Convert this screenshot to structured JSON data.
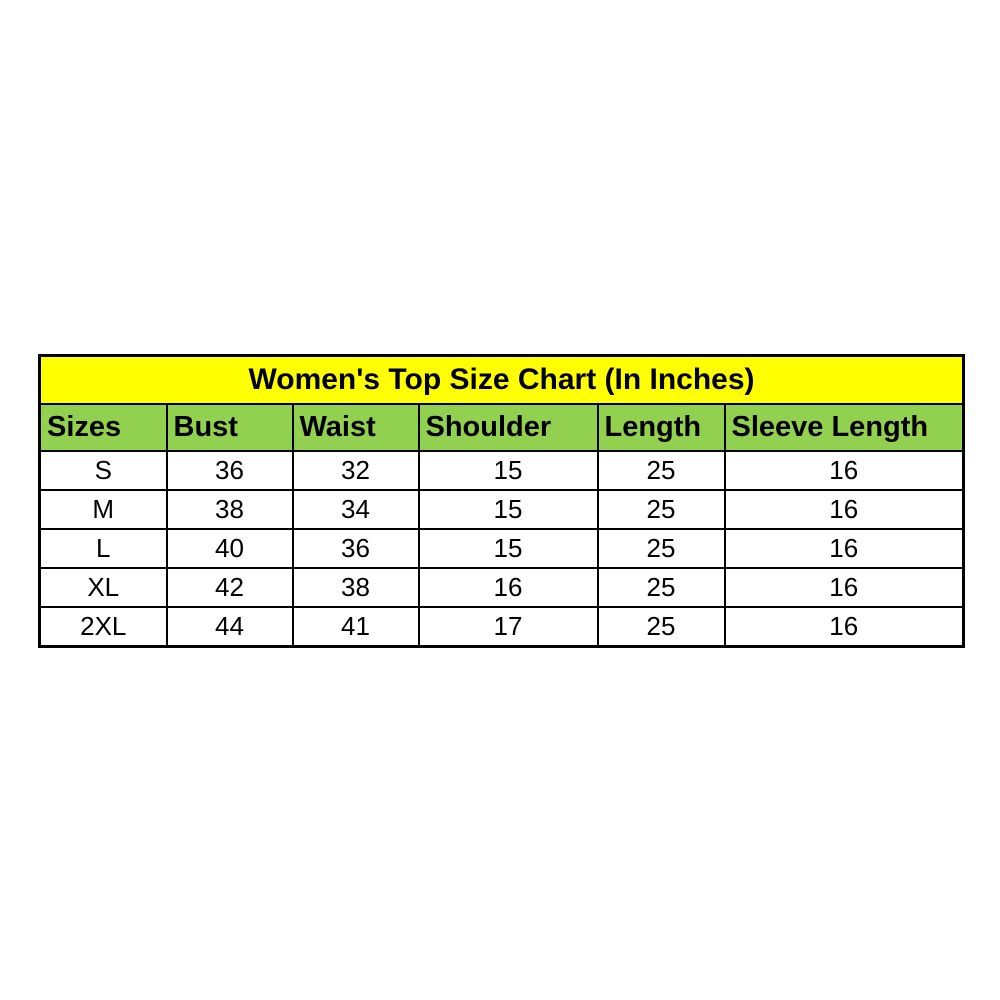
{
  "page": {
    "background_color": "#ffffff"
  },
  "colors": {
    "title_bg": "#ffff00",
    "header_bg": "#92d050",
    "border": "#000000",
    "text": "#000000",
    "cell_bg": "#ffffff"
  },
  "chart_data": {
    "type": "table",
    "title": "Women's Top Size Chart (In Inches)",
    "columns": [
      "Sizes",
      "Bust",
      "Waist",
      "Shoulder",
      "Length",
      "Sleeve Length"
    ],
    "rows": [
      [
        "S",
        "36",
        "32",
        "15",
        "25",
        "16"
      ],
      [
        "M",
        "38",
        "34",
        "15",
        "25",
        "16"
      ],
      [
        "L",
        "40",
        "36",
        "15",
        "25",
        "16"
      ],
      [
        "XL",
        "42",
        "38",
        "16",
        "25",
        "16"
      ],
      [
        "2XL",
        "44",
        "41",
        "17",
        "25",
        "16"
      ]
    ],
    "units": "inches"
  }
}
